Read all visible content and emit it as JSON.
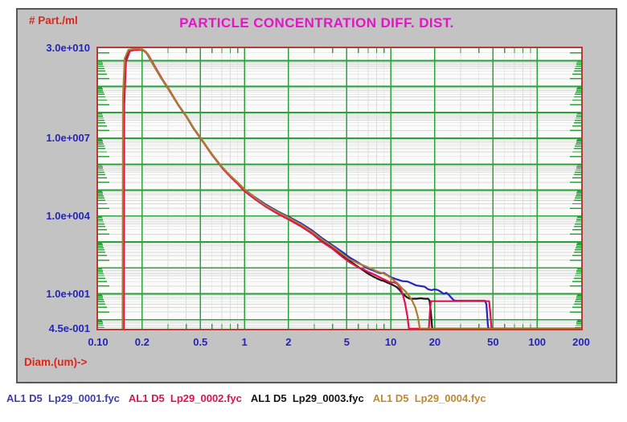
{
  "window": {
    "background": "#ffffff",
    "panel_background": "#c3c3c3",
    "panel_border": "#575757"
  },
  "chart": {
    "title": "PARTICLE CONCENTRATION DIFF. DIST.",
    "title_color": "#e414c8",
    "y_axis_title": "# Part./ml",
    "x_axis_title": "Diam.(um)->",
    "axis_title_color": "#e02518",
    "tick_label_color": "#2424bc",
    "plot_border_color": "#b43c34",
    "plot_background": "#fbfbfa"
  },
  "legend": {
    "items": [
      {
        "label": "AL1 D5  Lp29_0001.fyc",
        "color": "#3c3cb4"
      },
      {
        "label": "AL1 D5  Lp29_0002.fyc",
        "color": "#e4114e"
      },
      {
        "label": "AL1 D5  Lp29_0003.fyc",
        "color": "#141414"
      },
      {
        "label": "AL1 D5  Lp29_0004.fyc",
        "color": "#c08a30"
      }
    ]
  },
  "chart_data": {
    "type": "line",
    "title": "PARTICLE CONCENTRATION DIFF. DIST.",
    "xlabel": "Diam.(um)->",
    "ylabel": "# Part./ml",
    "x_axis": {
      "scale": "log",
      "min": 0.1,
      "max": 200,
      "tick_labels": [
        {
          "text": "0.10",
          "value": 0.1
        },
        {
          "text": "0.2",
          "value": 0.2
        },
        {
          "text": "0.5",
          "value": 0.5
        },
        {
          "text": "1",
          "value": 1
        },
        {
          "text": "2",
          "value": 2
        },
        {
          "text": "5",
          "value": 5
        },
        {
          "text": "10",
          "value": 10
        },
        {
          "text": "20",
          "value": 20
        },
        {
          "text": "50",
          "value": 50
        },
        {
          "text": "100",
          "value": 100
        },
        {
          "text": "200",
          "value": 200
        }
      ]
    },
    "y_axis": {
      "scale": "log",
      "min": 0.45,
      "max": 30000000000.0,
      "tick_labels": [
        {
          "text": "3.0e+010",
          "value": 30000000000.0
        },
        {
          "text": "1.0e+007",
          "value": 10000000.0
        },
        {
          "text": "1.0e+004",
          "value": 10000.0
        },
        {
          "text": "1.0e+001",
          "value": 10
        },
        {
          "text": "4.5e-001",
          "value": 0.45
        }
      ]
    },
    "grid": {
      "major_color": "#2aa33a",
      "minor_color": "#d9d9d9",
      "x_major": [
        0.2,
        0.5,
        1,
        2,
        5,
        10,
        20,
        50,
        100
      ],
      "y_major_decades": [
        0,
        1,
        2,
        3,
        4,
        5,
        6,
        7,
        8,
        9,
        10
      ]
    },
    "series": [
      {
        "name": "AL1 D5 Lp29_0001.fyc",
        "color": "#2424c8",
        "points": [
          [
            0.148,
            0.45
          ],
          [
            0.149,
            300000000.0
          ],
          [
            0.153,
            11000000000.0
          ],
          [
            0.162,
            25000000000.0
          ],
          [
            0.175,
            27000000000.0
          ],
          [
            0.19,
            27500000000.0
          ],
          [
            0.205,
            25000000000.0
          ],
          [
            0.215,
            19000000000.0
          ],
          [
            0.24,
            6500000000.0
          ],
          [
            0.27,
            2100000000.0
          ],
          [
            0.3,
            850000000.0
          ],
          [
            0.35,
            210000000.0
          ],
          [
            0.4,
            72000000.0
          ],
          [
            0.45,
            24000000.0
          ],
          [
            0.5,
            10500000.0
          ],
          [
            0.6,
            2400000.0
          ],
          [
            0.7,
            800000.0
          ],
          [
            0.8,
            360000.0
          ],
          [
            0.9,
            190000.0
          ],
          [
            1.0,
            105000.0
          ],
          [
            1.2,
            50000.0
          ],
          [
            1.4,
            28000.0
          ],
          [
            1.7,
            15000.0
          ],
          [
            2.0,
            9500.0
          ],
          [
            2.4,
            5500.0
          ],
          [
            2.9,
            2800.0
          ],
          [
            3.4,
            1400.0
          ],
          [
            4.0,
            750
          ],
          [
            4.7,
            400
          ],
          [
            5.2,
            260
          ],
          [
            6,
            160
          ],
          [
            6.5,
            120
          ],
          [
            7,
            95
          ],
          [
            7.5,
            82
          ],
          [
            8,
            70
          ],
          [
            8.5,
            62
          ],
          [
            9,
            64
          ],
          [
            9.5,
            52
          ],
          [
            10,
            44
          ],
          [
            11,
            36
          ],
          [
            12,
            31
          ],
          [
            13,
            30
          ],
          [
            14,
            25
          ],
          [
            15,
            21
          ],
          [
            16,
            20
          ],
          [
            17,
            19
          ],
          [
            18,
            15
          ],
          [
            19,
            14
          ],
          [
            20,
            15
          ],
          [
            21,
            14
          ],
          [
            22,
            12
          ],
          [
            23,
            10
          ],
          [
            24,
            11
          ],
          [
            25,
            9
          ],
          [
            26,
            7
          ],
          [
            27,
            5.6
          ],
          [
            28,
            5.4
          ],
          [
            32,
            5.4
          ],
          [
            38,
            5.4
          ],
          [
            44,
            5.4
          ],
          [
            45,
            4
          ],
          [
            46,
            0.7
          ],
          [
            46.5,
            0.45
          ],
          [
            60,
            0.45
          ],
          [
            120,
            0.45
          ],
          [
            200,
            0.45
          ]
        ]
      },
      {
        "name": "AL1 D5 Lp29_0003.fyc",
        "color": "#1b1b1b",
        "points": [
          [
            0.149,
            0.45
          ],
          [
            0.15,
            250000000.0
          ],
          [
            0.154,
            10000000000.0
          ],
          [
            0.163,
            24000000000.0
          ],
          [
            0.176,
            26000000000.0
          ],
          [
            0.192,
            26500000000.0
          ],
          [
            0.207,
            24000000000.0
          ],
          [
            0.217,
            18000000000.0
          ],
          [
            0.242,
            6100000000.0
          ],
          [
            0.272,
            2000000000.0
          ],
          [
            0.302,
            810000000.0
          ],
          [
            0.352,
            200000000.0
          ],
          [
            0.402,
            69000000.0
          ],
          [
            0.452,
            23000000.0
          ],
          [
            0.502,
            10000000.0
          ],
          [
            0.602,
            2300000.0
          ],
          [
            0.702,
            760000.0
          ],
          [
            0.802,
            340000.0
          ],
          [
            0.902,
            180000.0
          ],
          [
            1.0,
            98000.0
          ],
          [
            1.2,
            46000.0
          ],
          [
            1.4,
            25000.0
          ],
          [
            1.7,
            13000.0
          ],
          [
            2.0,
            8200.0
          ],
          [
            2.4,
            4600.0
          ],
          [
            2.9,
            2300.0
          ],
          [
            3.4,
            1150.0
          ],
          [
            4.0,
            620
          ],
          [
            4.7,
            300
          ],
          [
            5.2,
            190
          ],
          [
            6,
            110
          ],
          [
            6.5,
            80
          ],
          [
            7,
            60
          ],
          [
            7.5,
            48
          ],
          [
            8,
            40
          ],
          [
            8.5,
            34
          ],
          [
            9,
            31
          ],
          [
            9.5,
            27
          ],
          [
            10,
            24
          ],
          [
            10.5,
            21
          ],
          [
            11,
            18
          ],
          [
            11.5,
            14
          ],
          [
            12,
            10.5
          ],
          [
            12.5,
            8.5
          ],
          [
            13,
            7.2
          ],
          [
            13.5,
            6.5
          ],
          [
            14,
            6.5
          ],
          [
            15,
            6.5
          ],
          [
            16,
            6.8
          ],
          [
            17,
            6.5
          ],
          [
            18,
            6.5
          ],
          [
            18.4,
            5.5
          ],
          [
            18.8,
            2
          ],
          [
            19.2,
            0.45
          ],
          [
            30,
            0.45
          ],
          [
            60,
            0.45
          ],
          [
            120,
            0.45
          ],
          [
            200,
            0.45
          ]
        ]
      },
      {
        "name": "AL1 D5 Lp29_0002.fyc",
        "color": "#e4114e",
        "points": [
          [
            0.15,
            0.45
          ],
          [
            0.151,
            200000000.0
          ],
          [
            0.155,
            9000000000.0
          ],
          [
            0.165,
            23500000000.0
          ],
          [
            0.178,
            25500000000.0
          ],
          [
            0.195,
            26000000000.0
          ],
          [
            0.21,
            23000000000.0
          ],
          [
            0.22,
            17000000000.0
          ],
          [
            0.245,
            5800000000.0
          ],
          [
            0.275,
            1900000000.0
          ],
          [
            0.305,
            780000000.0
          ],
          [
            0.355,
            190000000.0
          ],
          [
            0.405,
            66000000.0
          ],
          [
            0.455,
            22000000.0
          ],
          [
            0.505,
            9500000.0
          ],
          [
            0.605,
            2200000.0
          ],
          [
            0.705,
            720000.0
          ],
          [
            0.805,
            320000.0
          ],
          [
            0.905,
            170000.0
          ],
          [
            1.0,
            92000.0
          ],
          [
            1.2,
            42000.0
          ],
          [
            1.4,
            23000.0
          ],
          [
            1.7,
            12000.0
          ],
          [
            2.0,
            7500.0
          ],
          [
            2.4,
            4200.0
          ],
          [
            2.9,
            2100.0
          ],
          [
            3.4,
            1000.0
          ],
          [
            4.0,
            550
          ],
          [
            4.7,
            260
          ],
          [
            5.2,
            170
          ],
          [
            6,
            105
          ],
          [
            6.5,
            88
          ],
          [
            7,
            70
          ],
          [
            7.5,
            60
          ],
          [
            8,
            50
          ],
          [
            8.5,
            42
          ],
          [
            9,
            36
          ],
          [
            9.5,
            31
          ],
          [
            10,
            27
          ],
          [
            10.5,
            28
          ],
          [
            11,
            25
          ],
          [
            11.5,
            18
          ],
          [
            12,
            11
          ],
          [
            12.5,
            4.5
          ],
          [
            13,
            1.3
          ],
          [
            13.3,
            0.45
          ],
          [
            18.2,
            0.45
          ],
          [
            18.5,
            2
          ],
          [
            18.8,
            5.2
          ],
          [
            20,
            5.2
          ],
          [
            28,
            5.2
          ],
          [
            36,
            5.2
          ],
          [
            44,
            5.2
          ],
          [
            47,
            5.2
          ],
          [
            47.8,
            2
          ],
          [
            48.8,
            0.45
          ],
          [
            60,
            0.45
          ],
          [
            120,
            0.45
          ],
          [
            200,
            0.45
          ]
        ]
      },
      {
        "name": "AL1 D5 Lp29_0004.fyc",
        "color": "#aa7d31",
        "points": [
          [
            0.147,
            0.45
          ],
          [
            0.148,
            400000000.0
          ],
          [
            0.152,
            12000000000.0
          ],
          [
            0.161,
            26000000000.0
          ],
          [
            0.174,
            28000000000.0
          ],
          [
            0.188,
            28500000000.0
          ],
          [
            0.204,
            26000000000.0
          ],
          [
            0.214,
            20000000000.0
          ],
          [
            0.239,
            6800000000.0
          ],
          [
            0.269,
            2200000000.0
          ],
          [
            0.299,
            880000000.0
          ],
          [
            0.349,
            220000000.0
          ],
          [
            0.399,
            75000000.0
          ],
          [
            0.449,
            25000000.0
          ],
          [
            0.499,
            11000000.0
          ],
          [
            0.599,
            2500000.0
          ],
          [
            0.699,
            820000.0
          ],
          [
            0.799,
            370000.0
          ],
          [
            0.899,
            200000.0
          ],
          [
            1.0,
            110000.0
          ],
          [
            1.2,
            48000.0
          ],
          [
            1.4,
            26000.0
          ],
          [
            1.7,
            14000.0
          ],
          [
            2.0,
            8800.0
          ],
          [
            2.4,
            5000.0
          ],
          [
            2.9,
            2500.0
          ],
          [
            3.4,
            1250.0
          ],
          [
            4.0,
            680
          ],
          [
            4.7,
            340
          ],
          [
            5.2,
            220
          ],
          [
            6,
            150
          ],
          [
            6.5,
            125
          ],
          [
            7,
            105
          ],
          [
            7.5,
            90
          ],
          [
            8,
            74
          ],
          [
            8.5,
            66
          ],
          [
            9,
            60
          ],
          [
            9.5,
            50
          ],
          [
            10,
            42
          ],
          [
            10.5,
            33
          ],
          [
            11,
            27
          ],
          [
            11.5,
            21
          ],
          [
            12,
            16
          ],
          [
            12.7,
            12
          ],
          [
            13.3,
            8.5
          ],
          [
            14,
            5.5
          ],
          [
            14.7,
            3
          ],
          [
            15.3,
            1.3
          ],
          [
            15.8,
            0.45
          ],
          [
            30,
            0.45
          ],
          [
            60,
            0.45
          ],
          [
            120,
            0.45
          ],
          [
            200,
            0.45
          ]
        ]
      }
    ]
  }
}
